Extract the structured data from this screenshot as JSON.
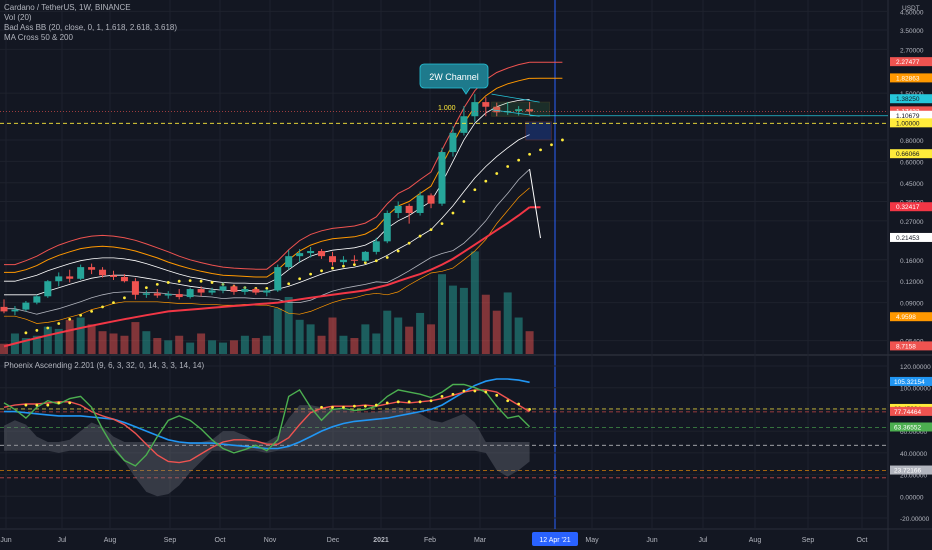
{
  "header": {
    "title": "Cardano / TetherUS, 1W, BINANCE",
    "indicators": [
      "Vol (20)",
      "Bad Ass BB (20, close, 0, 1, 1.618, 2.618, 3.618)",
      "MA Cross 50 & 200"
    ]
  },
  "oscillator": {
    "title": "Phoenix Ascending 2.201 (9, 6, 3, 32, 0, 14, 3, 3, 14, 14)"
  },
  "annotations": {
    "channel_label": "2W Channel",
    "fib_level": "1.000"
  },
  "colors": {
    "background": "#131722",
    "up": "#26a69a",
    "down": "#ef5350",
    "grid": "#1e222d",
    "crosshair": "#2962ff"
  },
  "chart_data": [
    {
      "type": "line",
      "name": "price",
      "title": "Cardano / TetherUS, 1W, BINANCE",
      "yscale": "log",
      "y_unit": "USDT",
      "y_ticks": [
        "4.50000",
        "3.50000",
        "2.70000",
        "1.50000",
        "0.80000",
        "0.60000",
        "0.45000",
        "0.35000",
        "0.27000",
        "0.16000",
        "0.12000",
        "0.09000",
        "0.05400"
      ],
      "price_labels": [
        {
          "value": "2.27477",
          "color": "#ef5350"
        },
        {
          "value": "1.82863",
          "color": "#ff9800"
        },
        {
          "value": "1.38250",
          "color": "#26c6da"
        },
        {
          "value": "1.17432",
          "sub": "7d 0h",
          "color": "#ef5350"
        },
        {
          "value": "1.10679",
          "color": "#ffffff"
        },
        {
          "value": "1.00000",
          "color": "#ffeb3b"
        },
        {
          "value": "0.66066",
          "color": "#ffeb3b"
        },
        {
          "value": "0.32417",
          "color": "#f23645"
        },
        {
          "value": "0.21453",
          "color": "#ffffff"
        },
        {
          "value": "4.9598",
          "color": "#ff9800"
        },
        {
          "value": "8.7158",
          "color": "#ef5350"
        }
      ],
      "x_labels": [
        "Jun",
        "Jul",
        "Aug",
        "Sep",
        "Oct",
        "Nov",
        "Dec",
        "2021",
        "Feb",
        "Mar",
        "12 Apr '21",
        "May",
        "Jun",
        "Jul",
        "Aug",
        "Sep",
        "Oct"
      ],
      "candles": [
        {
          "o": 0.085,
          "h": 0.094,
          "l": 0.078,
          "c": 0.08
        },
        {
          "o": 0.08,
          "h": 0.086,
          "l": 0.076,
          "c": 0.082
        },
        {
          "o": 0.082,
          "h": 0.092,
          "l": 0.08,
          "c": 0.09
        },
        {
          "o": 0.09,
          "h": 0.1,
          "l": 0.088,
          "c": 0.098
        },
        {
          "o": 0.098,
          "h": 0.122,
          "l": 0.096,
          "c": 0.12
        },
        {
          "o": 0.12,
          "h": 0.135,
          "l": 0.112,
          "c": 0.128
        },
        {
          "o": 0.128,
          "h": 0.14,
          "l": 0.118,
          "c": 0.124
        },
        {
          "o": 0.124,
          "h": 0.15,
          "l": 0.122,
          "c": 0.145
        },
        {
          "o": 0.145,
          "h": 0.152,
          "l": 0.132,
          "c": 0.14
        },
        {
          "o": 0.14,
          "h": 0.145,
          "l": 0.126,
          "c": 0.13
        },
        {
          "o": 0.13,
          "h": 0.138,
          "l": 0.122,
          "c": 0.127
        },
        {
          "o": 0.127,
          "h": 0.132,
          "l": 0.118,
          "c": 0.12
        },
        {
          "o": 0.12,
          "h": 0.125,
          "l": 0.094,
          "c": 0.1
        },
        {
          "o": 0.1,
          "h": 0.106,
          "l": 0.096,
          "c": 0.102
        },
        {
          "o": 0.102,
          "h": 0.108,
          "l": 0.096,
          "c": 0.099
        },
        {
          "o": 0.099,
          "h": 0.105,
          "l": 0.095,
          "c": 0.101
        },
        {
          "o": 0.101,
          "h": 0.108,
          "l": 0.094,
          "c": 0.097
        },
        {
          "o": 0.097,
          "h": 0.11,
          "l": 0.095,
          "c": 0.108
        },
        {
          "o": 0.108,
          "h": 0.112,
          "l": 0.098,
          "c": 0.103
        },
        {
          "o": 0.103,
          "h": 0.11,
          "l": 0.1,
          "c": 0.106
        },
        {
          "o": 0.106,
          "h": 0.118,
          "l": 0.102,
          "c": 0.112
        },
        {
          "o": 0.112,
          "h": 0.115,
          "l": 0.1,
          "c": 0.104
        },
        {
          "o": 0.104,
          "h": 0.112,
          "l": 0.1,
          "c": 0.108
        },
        {
          "o": 0.108,
          "h": 0.11,
          "l": 0.1,
          "c": 0.103
        },
        {
          "o": 0.103,
          "h": 0.108,
          "l": 0.098,
          "c": 0.106
        },
        {
          "o": 0.106,
          "h": 0.15,
          "l": 0.104,
          "c": 0.145
        },
        {
          "o": 0.145,
          "h": 0.182,
          "l": 0.14,
          "c": 0.168
        },
        {
          "o": 0.168,
          "h": 0.185,
          "l": 0.155,
          "c": 0.175
        },
        {
          "o": 0.175,
          "h": 0.19,
          "l": 0.165,
          "c": 0.18
        },
        {
          "o": 0.18,
          "h": 0.185,
          "l": 0.162,
          "c": 0.168
        },
        {
          "o": 0.168,
          "h": 0.178,
          "l": 0.148,
          "c": 0.155
        },
        {
          "o": 0.155,
          "h": 0.168,
          "l": 0.15,
          "c": 0.16
        },
        {
          "o": 0.16,
          "h": 0.17,
          "l": 0.152,
          "c": 0.158
        },
        {
          "o": 0.158,
          "h": 0.18,
          "l": 0.155,
          "c": 0.178
        },
        {
          "o": 0.178,
          "h": 0.215,
          "l": 0.172,
          "c": 0.205
        },
        {
          "o": 0.205,
          "h": 0.31,
          "l": 0.2,
          "c": 0.3
        },
        {
          "o": 0.3,
          "h": 0.35,
          "l": 0.28,
          "c": 0.33
        },
        {
          "o": 0.33,
          "h": 0.34,
          "l": 0.26,
          "c": 0.3
        },
        {
          "o": 0.3,
          "h": 0.4,
          "l": 0.29,
          "c": 0.38
        },
        {
          "o": 0.38,
          "h": 0.39,
          "l": 0.32,
          "c": 0.34
        },
        {
          "o": 0.34,
          "h": 0.72,
          "l": 0.33,
          "c": 0.68
        },
        {
          "o": 0.68,
          "h": 0.96,
          "l": 0.64,
          "c": 0.88
        },
        {
          "o": 0.88,
          "h": 1.26,
          "l": 0.85,
          "c": 1.1
        },
        {
          "o": 1.1,
          "h": 1.48,
          "l": 1.02,
          "c": 1.33
        },
        {
          "o": 1.33,
          "h": 1.42,
          "l": 1.1,
          "c": 1.25
        },
        {
          "o": 1.25,
          "h": 1.32,
          "l": 1.1,
          "c": 1.16
        },
        {
          "o": 1.16,
          "h": 1.33,
          "l": 1.12,
          "c": 1.18
        },
        {
          "o": 1.18,
          "h": 1.26,
          "l": 1.11,
          "c": 1.21
        },
        {
          "o": 1.21,
          "h": 1.33,
          "l": 1.12,
          "c": 1.174
        }
      ],
      "volume": [
        0.9,
        1.8,
        1.4,
        1.6,
        2.4,
        2.2,
        3.0,
        3.2,
        2.6,
        2.0,
        1.8,
        1.6,
        2.8,
        2.0,
        1.4,
        1.2,
        1.6,
        1.0,
        1.8,
        1.2,
        1.0,
        1.2,
        1.6,
        1.4,
        1.6,
        4.0,
        5.0,
        3.0,
        2.6,
        1.6,
        3.2,
        1.6,
        1.4,
        2.6,
        1.8,
        3.8,
        3.2,
        2.4,
        3.6,
        2.6,
        7.0,
        6.0,
        5.8,
        9.0,
        5.2,
        3.8,
        5.4,
        3.2,
        2.0
      ],
      "bb_mid": [
        0.1,
        0.1,
        0.1,
        0.1,
        0.105,
        0.11,
        0.115,
        0.12,
        0.125,
        0.128,
        0.13,
        0.13,
        0.128,
        0.125,
        0.122,
        0.118,
        0.115,
        0.112,
        0.11,
        0.108,
        0.106,
        0.106,
        0.106,
        0.105,
        0.105,
        0.108,
        0.112,
        0.118,
        0.125,
        0.132,
        0.138,
        0.142,
        0.145,
        0.15,
        0.158,
        0.17,
        0.185,
        0.2,
        0.22,
        0.24,
        0.28,
        0.33,
        0.4,
        0.48,
        0.56,
        0.64,
        0.72,
        0.8,
        0.86
      ],
      "bb_upper_1": [
        0.12,
        0.12,
        0.125,
        0.13,
        0.138,
        0.145,
        0.152,
        0.158,
        0.162,
        0.164,
        0.164,
        0.162,
        0.158,
        0.152,
        0.145,
        0.138,
        0.132,
        0.127,
        0.124,
        0.12,
        0.118,
        0.117,
        0.117,
        0.116,
        0.116,
        0.125,
        0.14,
        0.155,
        0.168,
        0.176,
        0.182,
        0.185,
        0.188,
        0.195,
        0.21,
        0.245,
        0.27,
        0.29,
        0.32,
        0.35,
        0.45,
        0.6,
        0.8,
        1.0,
        1.15,
        1.25,
        1.32,
        1.36,
        1.38
      ],
      "bb_upper_2": [
        0.135,
        0.135,
        0.14,
        0.148,
        0.16,
        0.17,
        0.178,
        0.186,
        0.19,
        0.192,
        0.19,
        0.186,
        0.18,
        0.172,
        0.164,
        0.155,
        0.148,
        0.142,
        0.137,
        0.133,
        0.13,
        0.129,
        0.128,
        0.127,
        0.127,
        0.14,
        0.16,
        0.18,
        0.195,
        0.205,
        0.212,
        0.215,
        0.218,
        0.226,
        0.245,
        0.29,
        0.33,
        0.35,
        0.39,
        0.43,
        0.57,
        0.76,
        1.0,
        1.25,
        1.45,
        1.6,
        1.7,
        1.77,
        1.83
      ],
      "bb_upper_3": [
        0.15,
        0.15,
        0.158,
        0.168,
        0.182,
        0.195,
        0.205,
        0.214,
        0.22,
        0.222,
        0.22,
        0.215,
        0.208,
        0.198,
        0.188,
        0.178,
        0.168,
        0.16,
        0.154,
        0.149,
        0.145,
        0.143,
        0.142,
        0.141,
        0.141,
        0.158,
        0.183,
        0.207,
        0.225,
        0.236,
        0.244,
        0.248,
        0.252,
        0.262,
        0.285,
        0.34,
        0.39,
        0.42,
        0.47,
        0.52,
        0.7,
        0.93,
        1.23,
        1.55,
        1.8,
        1.98,
        2.1,
        2.2,
        2.27
      ],
      "bb_lower_1": [
        0.083,
        0.083,
        0.08,
        0.077,
        0.08,
        0.083,
        0.087,
        0.091,
        0.096,
        0.1,
        0.103,
        0.104,
        0.104,
        0.103,
        0.103,
        0.101,
        0.1,
        0.099,
        0.098,
        0.097,
        0.095,
        0.096,
        0.096,
        0.095,
        0.095,
        0.094,
        0.09,
        0.09,
        0.093,
        0.099,
        0.105,
        0.109,
        0.112,
        0.115,
        0.119,
        0.118,
        0.127,
        0.138,
        0.151,
        0.165,
        0.174,
        0.181,
        0.2,
        0.23,
        0.27,
        0.33,
        0.39,
        0.47,
        0.54
      ],
      "bb_lower_2": [
        0.075,
        0.075,
        0.072,
        0.068,
        0.069,
        0.071,
        0.074,
        0.077,
        0.082,
        0.085,
        0.089,
        0.091,
        0.091,
        0.091,
        0.091,
        0.09,
        0.089,
        0.089,
        0.088,
        0.088,
        0.087,
        0.087,
        0.088,
        0.087,
        0.087,
        0.084,
        0.078,
        0.077,
        0.08,
        0.085,
        0.09,
        0.094,
        0.096,
        0.1,
        0.102,
        0.1,
        0.104,
        0.114,
        0.124,
        0.134,
        0.137,
        0.143,
        0.16,
        0.18,
        0.21,
        0.26,
        0.31,
        0.37,
        0.42
      ],
      "ma50": [
        0.05,
        0.052,
        0.054,
        0.056,
        0.058,
        0.06,
        0.062,
        0.064,
        0.066,
        0.068,
        0.07,
        0.072,
        0.074,
        0.076,
        0.078,
        0.08,
        0.081,
        0.082,
        0.083,
        0.084,
        0.085,
        0.086,
        0.087,
        0.088,
        0.089,
        0.09,
        0.092,
        0.094,
        0.096,
        0.098,
        0.1,
        0.102,
        0.104,
        0.106,
        0.11,
        0.114,
        0.12,
        0.126,
        0.132,
        0.14,
        0.15,
        0.162,
        0.178,
        0.196,
        0.216,
        0.238,
        0.262,
        0.29,
        0.324
      ],
      "psar": [
        null,
        null,
        0.06,
        0.062,
        0.064,
        0.068,
        0.072,
        0.076,
        0.08,
        0.085,
        0.09,
        0.096,
        0.104,
        0.11,
        0.115,
        0.118,
        0.12,
        0.121,
        0.12,
        0.118,
        0.115,
        0.112,
        0.11,
        0.109,
        0.109,
        0.11,
        0.116,
        0.124,
        0.132,
        0.138,
        0.143,
        0.147,
        0.15,
        0.154,
        0.158,
        0.165,
        0.18,
        0.2,
        0.22,
        0.24,
        0.26,
        0.3,
        0.35,
        0.41,
        0.46,
        0.51,
        0.56,
        0.61,
        0.66
      ]
    },
    {
      "type": "line",
      "name": "oscillator",
      "title": "Phoenix Ascending 2.201 (9, 6, 3, 32, 0, 14, 3, 3, 14, 14)",
      "ylim": [
        -20,
        120
      ],
      "y_ticks": [
        120,
        100,
        80,
        60,
        40,
        20,
        0,
        -20
      ],
      "y_tick_labels": [
        "120.00000",
        "100.00000",
        "80.00000",
        "60.00000",
        "40.00000",
        "20.00000",
        "0.00000",
        "-20.00000"
      ],
      "levels": [
        80.45024,
        77.74464,
        63.36552,
        47.0,
        23.72166,
        17.0
      ],
      "value_labels": [
        {
          "value": "105.32154",
          "color": "#2196f3"
        },
        {
          "value": "80.45024",
          "color": "#ffeb3b"
        },
        {
          "value": "77.74464",
          "color": "#ef5350"
        },
        {
          "value": "63.36552",
          "color": "#4caf50"
        },
        {
          "value": "23.72166",
          "color": "#b2b5be"
        }
      ],
      "blue": [
        78,
        78,
        77,
        76,
        75,
        74,
        74,
        74,
        73,
        72,
        71,
        68,
        64,
        60,
        56,
        52,
        50,
        49,
        49,
        49,
        48,
        47,
        46,
        45,
        44,
        44,
        46,
        50,
        55,
        60,
        64,
        67,
        69,
        70,
        71,
        72,
        74,
        76,
        78,
        80,
        84,
        90,
        96,
        102,
        106,
        108,
        108,
        107,
        105
      ],
      "red": [
        82,
        84,
        85,
        85,
        86,
        87,
        87,
        84,
        78,
        74,
        71,
        66,
        58,
        48,
        38,
        32,
        31,
        33,
        39,
        45,
        50,
        52,
        52,
        51,
        48,
        48,
        54,
        66,
        77,
        81,
        83,
        83,
        83,
        84,
        83,
        85,
        87,
        86,
        87,
        88,
        90,
        93,
        96,
        98,
        98,
        96,
        90,
        84,
        78
      ],
      "green": [
        86,
        80,
        72,
        82,
        88,
        85,
        90,
        92,
        82,
        62,
        45,
        33,
        28,
        38,
        55,
        70,
        74,
        70,
        62,
        52,
        44,
        40,
        43,
        47,
        42,
        52,
        92,
        98,
        82,
        70,
        80,
        81,
        79,
        80,
        83,
        92,
        98,
        96,
        94,
        91,
        96,
        103,
        103,
        100,
        96,
        83,
        72,
        74,
        64
      ],
      "cloud": [
        65,
        70,
        66,
        55,
        50,
        48,
        52,
        60,
        68,
        64,
        55,
        40,
        25,
        12,
        8,
        10,
        18,
        30,
        40,
        52,
        60,
        60,
        56,
        50,
        48,
        56,
        72,
        84,
        84,
        82,
        80,
        80,
        78,
        77,
        78,
        80,
        82,
        80,
        76,
        70,
        68,
        72,
        76,
        68,
        48,
        32,
        26,
        32,
        40
      ],
      "dots": [
        null,
        null,
        84,
        84,
        84,
        86,
        86,
        null,
        null,
        null,
        null,
        null,
        null,
        null,
        null,
        null,
        null,
        null,
        null,
        null,
        null,
        null,
        null,
        null,
        null,
        null,
        null,
        null,
        null,
        82,
        82,
        82,
        83,
        83,
        84,
        86,
        87,
        87,
        87,
        88,
        92,
        94,
        97,
        97,
        96,
        93,
        88,
        85,
        80
      ]
    }
  ]
}
